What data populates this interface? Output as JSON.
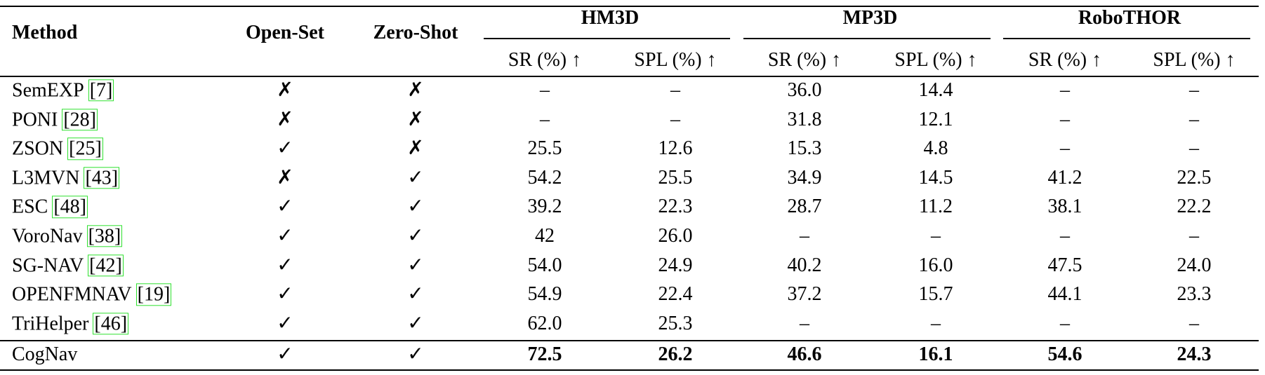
{
  "table": {
    "headers": {
      "method": "Method",
      "open_set": "Open-Set",
      "zero_shot": "Zero-Shot",
      "groups": [
        "HM3D",
        "MP3D",
        "RoboTHOR"
      ],
      "metrics": [
        "SR (%) ↑",
        "SPL (%) ↑",
        "SR (%) ↑",
        "SPL (%) ↑",
        "SR (%) ↑",
        "SPL (%) ↑"
      ]
    },
    "rows": [
      {
        "method": "SemEXP",
        "ref": "[7]",
        "open_set": "✗",
        "zero_shot": "✗",
        "values": [
          "–",
          "–",
          "36.0",
          "14.4",
          "–",
          "–"
        ]
      },
      {
        "method": "PONI",
        "ref": "[28]",
        "open_set": "✗",
        "zero_shot": "✗",
        "values": [
          "–",
          "–",
          "31.8",
          "12.1",
          "–",
          "–"
        ]
      },
      {
        "method": "ZSON",
        "ref": "[25]",
        "open_set": "✓",
        "zero_shot": "✗",
        "values": [
          "25.5",
          "12.6",
          "15.3",
          "4.8",
          "–",
          "–"
        ]
      },
      {
        "method": "L3MVN",
        "ref": "[43]",
        "open_set": "✗",
        "zero_shot": "✓",
        "values": [
          "54.2",
          "25.5",
          "34.9",
          "14.5",
          "41.2",
          "22.5"
        ]
      },
      {
        "method": "ESC",
        "ref": "[48]",
        "open_set": "✓",
        "zero_shot": "✓",
        "values": [
          "39.2",
          "22.3",
          "28.7",
          "11.2",
          "38.1",
          "22.2"
        ]
      },
      {
        "method": "VoroNav",
        "ref": "[38]",
        "open_set": "✓",
        "zero_shot": "✓",
        "values": [
          "42",
          "26.0",
          "–",
          "–",
          "–",
          "–"
        ]
      },
      {
        "method": "SG-NAV",
        "ref": "[42]",
        "open_set": "✓",
        "zero_shot": "✓",
        "values": [
          "54.0",
          "24.9",
          "40.2",
          "16.0",
          "47.5",
          "24.0"
        ]
      },
      {
        "method": "OPENFMNAV",
        "ref": "[19]",
        "open_set": "✓",
        "zero_shot": "✓",
        "values": [
          "54.9",
          "22.4",
          "37.2",
          "15.7",
          "44.1",
          "23.3"
        ]
      },
      {
        "method": "TriHelper",
        "ref": "[46]",
        "open_set": "✓",
        "zero_shot": "✓",
        "values": [
          "62.0",
          "25.3",
          "–",
          "–",
          "–",
          "–"
        ]
      },
      {
        "method": "CogNav",
        "open_set": "✓",
        "zero_shot": "✓",
        "values": [
          "72.5",
          "26.2",
          "46.6",
          "16.1",
          "54.6",
          "24.3"
        ]
      }
    ]
  }
}
